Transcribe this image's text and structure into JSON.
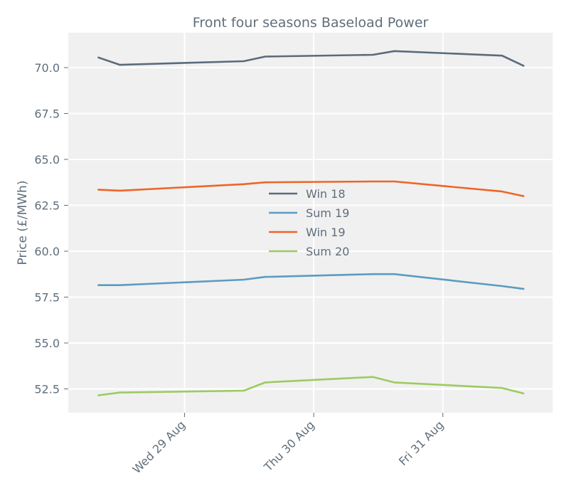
{
  "chart_data": {
    "type": "line",
    "title": "Front four seasons Baseload Power",
    "xlabel": "",
    "ylabel": "Price (£/MWh)",
    "ylim": [
      51.2,
      71.9
    ],
    "yticks": [
      52.5,
      55.0,
      57.5,
      60.0,
      62.5,
      65.0,
      67.5,
      70.0
    ],
    "yticklabels": [
      "52.5",
      "55.0",
      "57.5",
      "60.0",
      "62.5",
      "65.0",
      "67.5",
      "70.0"
    ],
    "xlim": [
      "2018-08-28T02:24",
      "2018-08-31T20:24"
    ],
    "xticks": [
      "2018-08-29",
      "2018-08-30",
      "2018-08-31"
    ],
    "xticklabels": [
      "Wed 29 Aug",
      "Thu 30 Aug",
      "Fri 31 Aug"
    ],
    "grid": true,
    "legend_position": "center",
    "x": [
      "2018-08-28T08:00",
      "2018-08-28T12:00",
      "2018-08-29T11:00",
      "2018-08-29T15:00",
      "2018-08-30T11:00",
      "2018-08-30T15:00",
      "2018-08-31T11:00",
      "2018-08-31T15:00"
    ],
    "series": [
      {
        "name": "Win 18",
        "color": "#5a6b7b",
        "values": [
          70.55,
          70.15,
          70.35,
          70.6,
          70.7,
          70.9,
          70.65,
          70.1
        ]
      },
      {
        "name": "Sum 19",
        "color": "#5b9bc2",
        "values": [
          58.15,
          58.15,
          58.45,
          58.6,
          58.75,
          58.75,
          58.1,
          57.95
        ]
      },
      {
        "name": "Win 19",
        "color": "#ee6528",
        "values": [
          63.35,
          63.3,
          63.65,
          63.75,
          63.8,
          63.8,
          63.25,
          63.0
        ]
      },
      {
        "name": "Sum 20",
        "color": "#9ccb61",
        "values": [
          52.15,
          52.3,
          52.4,
          52.85,
          53.15,
          52.85,
          52.55,
          52.25
        ]
      }
    ]
  },
  "colors": {
    "plot_background": "#f0f0f0",
    "grid": "#ffffff",
    "text": "#5f6e7b"
  }
}
